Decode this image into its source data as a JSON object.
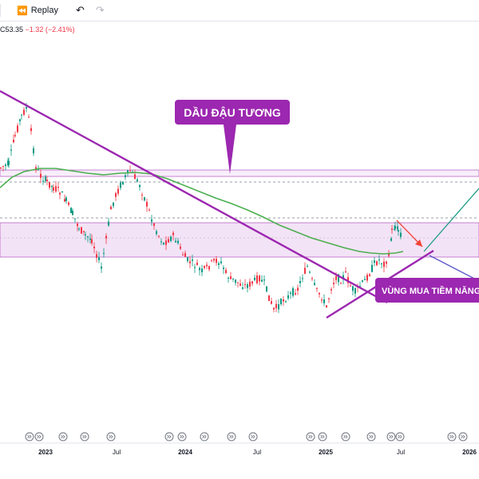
{
  "toolbar": {
    "replay_label": "Replay",
    "replay_icon": "replay-icon",
    "undo_icon": "undo-icon",
    "redo_icon": "redo-icon"
  },
  "ohlc": {
    "close_text": "C53.35",
    "change_text": "−1.32 (−2.41%)"
  },
  "annotations": {
    "title_label": "DẦU ĐẬU TƯƠNG",
    "zone_label": "VÙNG MUA TIỀM NĂNG"
  },
  "colors": {
    "purple": "#9c27b0",
    "green_ma": "#4caf50",
    "zone_fill": "#f3e3f6",
    "up": "#089981",
    "down": "#f23645",
    "teal_projection": "#1b9c85",
    "red_arrow": "#f44336"
  },
  "chart_data": {
    "type": "candlestick",
    "x_tick_labels": [
      "2023",
      "Jul",
      "2024",
      "Jul",
      "2025",
      "Jul",
      "2026"
    ],
    "series": [
      {
        "name": "",
        "kind": "ohlc"
      },
      {
        "name": "",
        "kind": "moving-average"
      }
    ],
    "grid": false
  }
}
